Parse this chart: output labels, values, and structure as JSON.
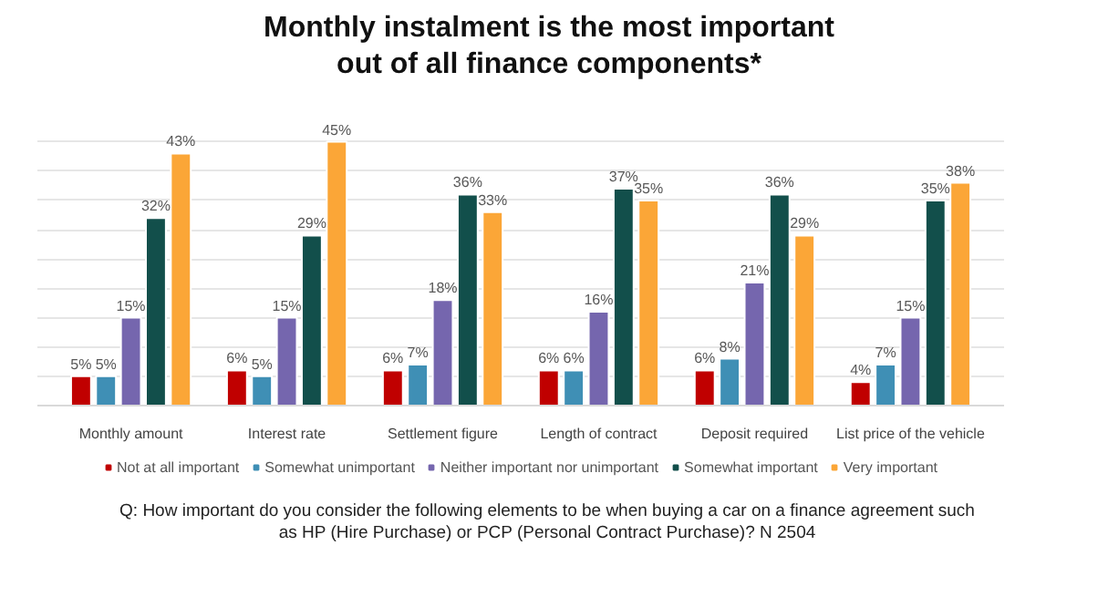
{
  "chart_data": {
    "type": "bar",
    "title": "Monthly instalment is the most important out of all finance components*",
    "categories": [
      "Monthly amount",
      "Interest rate",
      "Settlement figure",
      "Length of contract",
      "Deposit required",
      "List price of the vehicle"
    ],
    "series": [
      {
        "name": "Not at all important",
        "color": "#c00000",
        "values": [
          5,
          6,
          6,
          6,
          6,
          4
        ],
        "value_labels": [
          "5%",
          "6%",
          "6%",
          "6%",
          "6%",
          "4%"
        ]
      },
      {
        "name": "Somewhat unimportant",
        "color": "#3f8fb5",
        "values": [
          5,
          5,
          7,
          6,
          8,
          7
        ],
        "value_labels": [
          "5%",
          "5%",
          "7%",
          "6%",
          "8%",
          "7%"
        ]
      },
      {
        "name": "Neither important nor unimportant",
        "color": "#7566ae",
        "values": [
          15,
          15,
          18,
          16,
          21,
          15
        ],
        "value_labels": [
          "15%",
          "15%",
          "18%",
          "16%",
          "21%",
          "15%"
        ]
      },
      {
        "name": "Somewhat important",
        "color": "#124f4b",
        "values": [
          32,
          29,
          36,
          37,
          36,
          35
        ],
        "value_labels": [
          "32%",
          "29%",
          "36%",
          "37%",
          "36%",
          "35%"
        ]
      },
      {
        "name": "Very important",
        "color": "#fba637",
        "values": [
          43,
          45,
          33,
          35,
          29,
          38
        ],
        "value_labels": [
          "43%",
          "45%",
          "33%",
          "35%",
          "29%",
          "38%"
        ]
      }
    ],
    "tick_labels": "x",
    "grid": "y",
    "legend": "bottom",
    "annotations": [
      "Q: How important do you consider the following elements to be when buying a car on a finance agreement such as HP (Hire Purchase) or PCP (Personal Contract Purchase)? N 2504"
    ]
  }
}
